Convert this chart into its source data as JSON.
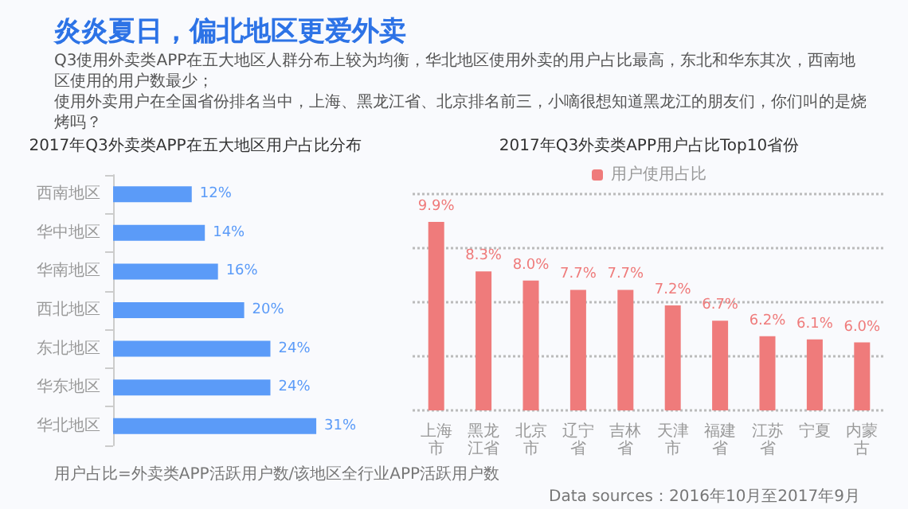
{
  "chart_data": [
    {
      "type": "other",
      "title": "炎炎夏日，偏北地区更爱外卖",
      "annotations": [
        "Q3使用外卖类APP在五大地区人群分布上较为均衡，华北地区使用外卖的用户占比最高，东北和华东其次，西南地区使用的用户数最少；",
        "使用外卖用户在全国省份排名当中，上海、黑龙江省、北京排名前三，小嘀很想知道黑龙江的朋友们，你们叫的是烧烤吗？",
        "用户占比=外卖类APP活跃用户数/该地区全行业APP活跃用户数",
        "Data sources：2016年10月至2017年9月"
      ]
    },
    {
      "type": "bar",
      "orientation": "horizontal",
      "title": "2017年Q3外卖类APP在五大地区用户占比分布",
      "categories": [
        "西南地区",
        "华中地区",
        "华南地区",
        "西北地区",
        "东北地区",
        "华东地区",
        "华北地区"
      ],
      "values": [
        12,
        14,
        16,
        20,
        24,
        24,
        31
      ],
      "value_labels": [
        "12%",
        "14%",
        "16%",
        "20%",
        "24%",
        "24%",
        "31%"
      ],
      "color": "#5b9bf8",
      "tick_labels": "y",
      "grid": false,
      "legend": false
    },
    {
      "type": "bar",
      "title": "2017年Q3外卖类APP用户占比Top10省份",
      "categories": [
        "上海市",
        "黑龙江省",
        "北京市",
        "辽宁省",
        "吉林省",
        "天津市",
        "福建省",
        "江苏省",
        "宁夏",
        "内蒙古"
      ],
      "series": [
        {
          "name": "用户使用占比",
          "color": "#ef7b7b",
          "values": [
            9.9,
            8.3,
            8.0,
            7.7,
            7.7,
            7.2,
            6.7,
            6.2,
            6.1,
            6.0
          ],
          "value_labels": [
            "9.9%",
            "8.3%",
            "8.0%",
            "7.7%",
            "7.7%",
            "7.2%",
            "6.7%",
            "6.2%",
            "6.1%",
            "6.0%"
          ]
        }
      ],
      "ylim": [
        3.8,
        10.8
      ],
      "yticks": [
        {
          "value": 3.8,
          "label": null
        },
        {
          "value": 5.55,
          "label": null
        },
        {
          "value": 7.3,
          "label": null
        },
        {
          "value": 9.05,
          "label": null
        },
        {
          "value": 10.8,
          "label": null
        }
      ],
      "tick_labels": "x",
      "grid": "y",
      "legend": "top"
    }
  ]
}
